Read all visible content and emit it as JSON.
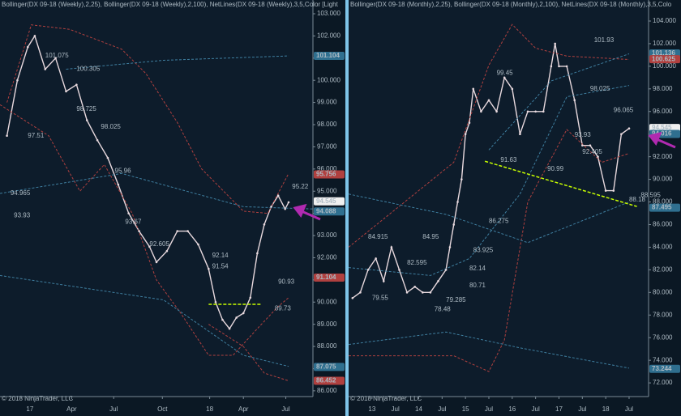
{
  "copyright": "© 2018 NinjaTrader, LLC",
  "chart_data": [
    {
      "type": "line",
      "title": "Bollinger(DX 09-18 (Weekly),2,25), Bollinger(DX 09-18 (Weekly),2,100), NetLines(DX 09-18 (Weekly),3,5,Color [Light",
      "xlim": [
        0,
        90
      ],
      "ylim": [
        85.74,
        103.62
      ],
      "xticks": [
        {
          "value": 8.6,
          "label": "17"
        },
        {
          "value": 20.6,
          "label": "Apr"
        },
        {
          "value": 32.7,
          "label": "Jul"
        },
        {
          "value": 46.7,
          "label": "Oct"
        },
        {
          "value": 60.3,
          "label": "18"
        },
        {
          "value": 70,
          "label": "Apr"
        },
        {
          "value": 82.2,
          "label": "Jul"
        }
      ],
      "yticks": [
        {
          "value": 86,
          "label": "86.000"
        },
        {
          "value": 87,
          "label": "87.000"
        },
        {
          "value": 88,
          "label": "88.000"
        },
        {
          "value": 89,
          "label": "89.000"
        },
        {
          "value": 90,
          "label": "90.000"
        },
        {
          "value": 91,
          "label": "91.000"
        },
        {
          "value": 92,
          "label": "92.000"
        },
        {
          "value": 93,
          "label": "93.000"
        },
        {
          "value": 94,
          "label": "94.000"
        },
        {
          "value": 95,
          "label": "95.000"
        },
        {
          "value": 96,
          "label": "96.000"
        },
        {
          "value": 97,
          "label": "97.000"
        },
        {
          "value": 98,
          "label": "98.000"
        },
        {
          "value": 99,
          "label": "99.000"
        },
        {
          "value": 100,
          "label": "100.000"
        },
        {
          "value": 101,
          "label": "101.000"
        },
        {
          "value": 102,
          "label": "102.000"
        },
        {
          "value": 103,
          "label": "103.000"
        }
      ],
      "series": [
        {
          "color": "#e8d9de",
          "width": 1.4,
          "x": [
            2,
            5,
            8,
            10,
            13,
            16,
            19,
            22,
            25,
            28,
            31,
            34,
            37,
            40,
            43,
            45,
            48,
            51,
            54,
            57,
            60,
            62,
            64,
            66,
            68,
            70,
            72,
            74,
            76,
            78,
            80,
            82,
            83
          ],
          "values": [
            97.5,
            100,
            101.5,
            102,
            100.5,
            101,
            99.5,
            99.8,
            98.2,
            97.3,
            96.5,
            95.3,
            94,
            93.2,
            92.5,
            91.8,
            92.3,
            93.2,
            93.2,
            92.6,
            91.5,
            90,
            89.2,
            88.8,
            89.3,
            89.5,
            90.2,
            92.2,
            93.5,
            94.3,
            94.8,
            94.2,
            94.5
          ]
        },
        {
          "color": "#b0403f",
          "dash": true,
          "x": [
            2,
            9,
            20,
            35,
            42,
            51,
            58,
            70,
            77,
            83
          ],
          "values": [
            99,
            102.5,
            102.3,
            101.4,
            100.3,
            98.1,
            96,
            94.1,
            94,
            95.8
          ]
        },
        {
          "color": "#b0403f",
          "dash": true,
          "x": [
            0,
            14,
            23,
            30,
            38,
            45,
            52,
            60,
            67,
            74,
            80,
            83
          ],
          "values": [
            98.9,
            97.5,
            95,
            96.2,
            94,
            91,
            89.5,
            87.6,
            87.6,
            88.8,
            89.8,
            90.2
          ]
        },
        {
          "color": "#b0403f",
          "dash": true,
          "x": [
            60,
            70,
            76,
            83
          ],
          "values": [
            89,
            88,
            86.8,
            86.45
          ]
        },
        {
          "color": "#3f7fa0",
          "dash": true,
          "x": [
            0,
            35,
            70,
            90
          ],
          "values": [
            94.9,
            95.8,
            94.3,
            94.2
          ]
        },
        {
          "color": "#3f7fa0",
          "dash": true,
          "x": [
            19,
            47,
            83
          ],
          "values": [
            100.5,
            100.9,
            101.1
          ]
        },
        {
          "color": "#3f7fa0",
          "dash": true,
          "x": [
            0,
            47,
            70,
            83
          ],
          "values": [
            91.2,
            90.1,
            87.6,
            87.1
          ]
        }
      ],
      "trendline": {
        "color": "#c8ff00",
        "x": [
          60,
          75
        ],
        "values": [
          89.9,
          89.9
        ]
      },
      "annotations": [
        {
          "text": "101.075",
          "x": 13,
          "y": 101.1
        },
        {
          "text": "100.305",
          "x": 22,
          "y": 100.5
        },
        {
          "text": "98.725",
          "x": 22,
          "y": 98.7
        },
        {
          "text": "98.025",
          "x": 29,
          "y": 97.9
        },
        {
          "text": "97.51",
          "x": 8,
          "y": 97.5
        },
        {
          "text": "95.96",
          "x": 33,
          "y": 95.9
        },
        {
          "text": "94.965",
          "x": 3,
          "y": 94.9
        },
        {
          "text": "93.93",
          "x": 4,
          "y": 93.9
        },
        {
          "text": "93.67",
          "x": 36,
          "y": 93.6
        },
        {
          "text": "92.605",
          "x": 43,
          "y": 92.6
        },
        {
          "text": "92.14",
          "x": 61,
          "y": 92.1
        },
        {
          "text": "91.54",
          "x": 61,
          "y": 91.6
        },
        {
          "text": "90.93",
          "x": 80,
          "y": 90.9
        },
        {
          "text": "89.73",
          "x": 79,
          "y": 89.7
        },
        {
          "text": "95.22",
          "x": 84,
          "y": 95.2
        }
      ],
      "badges": [
        {
          "value": 101.104,
          "color": "#2f6f8f"
        },
        {
          "value": 95.756,
          "color": "#b0403f"
        },
        {
          "value": 94.545,
          "color": "#f0f0f0"
        },
        {
          "value": 94.088,
          "color": "#2f6f8f"
        },
        {
          "value": 91.104,
          "color": "#b0403f"
        },
        {
          "value": 87.075,
          "color": "#2f6f8f"
        },
        {
          "value": 86.452,
          "color": "#b0403f"
        }
      ]
    },
    {
      "type": "line",
      "title": "Bollinger(DX 09-18 (Monthly),2,25), Bollinger(DX 09-18 (Monthly),2,100), NetLines(DX 09-18 (Monthly),3,5,Colo",
      "xlim": [
        -6,
        71
      ],
      "ylim": [
        70.79,
        105.86
      ],
      "xticks": [
        {
          "value": 0,
          "label": "13"
        },
        {
          "value": 6,
          "label": "Jul"
        },
        {
          "value": 12,
          "label": "14"
        },
        {
          "value": 18,
          "label": "Jul"
        },
        {
          "value": 24,
          "label": "15"
        },
        {
          "value": 30,
          "label": "Jul"
        },
        {
          "value": 36,
          "label": "16"
        },
        {
          "value": 42,
          "label": "Jul"
        },
        {
          "value": 48,
          "label": "17"
        },
        {
          "value": 54,
          "label": "Jul"
        },
        {
          "value": 60,
          "label": "18"
        },
        {
          "value": 66,
          "label": "Jul"
        }
      ],
      "yticks": [
        {
          "value": 72,
          "label": "72.000"
        },
        {
          "value": 74,
          "label": "74.000"
        },
        {
          "value": 76,
          "label": "76.000"
        },
        {
          "value": 78,
          "label": "78.000"
        },
        {
          "value": 80,
          "label": "80.000"
        },
        {
          "value": 82,
          "label": "82.000"
        },
        {
          "value": 84,
          "label": "84.000"
        },
        {
          "value": 86,
          "label": "86.000"
        },
        {
          "value": 88,
          "label": "88.000"
        },
        {
          "value": 90,
          "label": "90.000"
        },
        {
          "value": 92,
          "label": "92.000"
        },
        {
          "value": 94,
          "label": "94.000"
        },
        {
          "value": 96,
          "label": "96.000"
        },
        {
          "value": 98,
          "label": "98.000"
        },
        {
          "value": 100,
          "label": "100.000"
        },
        {
          "value": 102,
          "label": "102.000"
        },
        {
          "value": 104,
          "label": "104.000"
        }
      ],
      "series": [
        {
          "color": "#e8d9de",
          "width": 1.4,
          "x": [
            -5,
            -3,
            -1,
            1,
            3,
            5,
            7,
            9,
            11,
            13,
            15,
            17,
            19,
            20,
            21,
            22,
            23,
            24,
            25,
            26,
            28,
            30,
            32,
            34,
            36,
            38,
            40,
            42,
            44,
            46,
            47,
            48,
            50,
            52,
            54,
            56,
            58,
            60,
            62,
            64,
            66
          ],
          "values": [
            79.5,
            80,
            82,
            83,
            81,
            84,
            82,
            80,
            80.5,
            80,
            80,
            81,
            82,
            84,
            86,
            88,
            90,
            94,
            95,
            98,
            96,
            97,
            96,
            99,
            98,
            94,
            96,
            96,
            96,
            100,
            102,
            100,
            100,
            97,
            93,
            93,
            92,
            89,
            89,
            94,
            94.5
          ]
        },
        {
          "color": "#b0403f",
          "dash": true,
          "x": [
            -6,
            21,
            30,
            36,
            42,
            50,
            66
          ],
          "values": [
            84,
            91.5,
            100.1,
            103.7,
            101.6,
            100.9,
            100.6
          ]
        },
        {
          "color": "#b0403f",
          "dash": true,
          "x": [
            -6,
            21,
            30,
            34,
            40,
            50,
            59,
            66
          ],
          "values": [
            74.4,
            74.4,
            73,
            75.8,
            88,
            94.4,
            91.5,
            92.3
          ]
        },
        {
          "color": "#3f7fa0",
          "dash": true,
          "x": [
            -6,
            15,
            25,
            38,
            50,
            66
          ],
          "values": [
            82.2,
            81.5,
            83,
            88.7,
            97.3,
            98.3
          ]
        },
        {
          "color": "#3f7fa0",
          "dash": true,
          "x": [
            30,
            46,
            66
          ],
          "values": [
            92.6,
            98.7,
            101.1
          ]
        },
        {
          "color": "#3f7fa0",
          "dash": true,
          "x": [
            -6,
            19,
            40,
            66
          ],
          "values": [
            88.7,
            86.9,
            84.4,
            88
          ]
        },
        {
          "color": "#3f7fa0",
          "dash": true,
          "x": [
            -6,
            19,
            38,
            66
          ],
          "values": [
            75.4,
            76.5,
            75.1,
            73.3
          ]
        }
      ],
      "trendline": {
        "color": "#c8ff00",
        "x": [
          29,
          68
        ],
        "values": [
          91.6,
          87.6
        ]
      },
      "annotations": [
        {
          "text": "101.93",
          "x": 57,
          "y": 102.3
        },
        {
          "text": "99.45",
          "x": 32,
          "y": 99.4
        },
        {
          "text": "98.025",
          "x": 56,
          "y": 98
        },
        {
          "text": "96.065",
          "x": 62,
          "y": 96.1
        },
        {
          "text": "93.93",
          "x": 52,
          "y": 93.9
        },
        {
          "text": "92.405",
          "x": 54,
          "y": 92.4
        },
        {
          "text": "91.63",
          "x": 33,
          "y": 91.7
        },
        {
          "text": "90.99",
          "x": 45,
          "y": 90.9
        },
        {
          "text": "86.275",
          "x": 30,
          "y": 86.3
        },
        {
          "text": "84.915",
          "x": -1,
          "y": 84.9
        },
        {
          "text": "84.95",
          "x": 13,
          "y": 84.9
        },
        {
          "text": "82.595",
          "x": 9,
          "y": 82.6
        },
        {
          "text": "83.925",
          "x": 26,
          "y": 83.7
        },
        {
          "text": "82.14",
          "x": 25,
          "y": 82.1
        },
        {
          "text": "80.71",
          "x": 25,
          "y": 80.6
        },
        {
          "text": "79.55",
          "x": 0,
          "y": 79.5
        },
        {
          "text": "79.285",
          "x": 19,
          "y": 79.3
        },
        {
          "text": "78.48",
          "x": 16,
          "y": 78.5
        },
        {
          "text": "88.595",
          "x": 69,
          "y": 88.6
        },
        {
          "text": "88.18",
          "x": 66,
          "y": 88.2
        }
      ],
      "badges": [
        {
          "value": 101.136,
          "color": "#2f6f8f"
        },
        {
          "value": 100.625,
          "color": "#b0403f"
        },
        {
          "value": 94.545,
          "color": "#f0f0f0"
        },
        {
          "value": 94.016,
          "color": "#2f6f8f"
        },
        {
          "value": 87.495,
          "color": "#2f6f8f"
        },
        {
          "value": 73.244,
          "color": "#2f6f8f"
        }
      ]
    }
  ]
}
